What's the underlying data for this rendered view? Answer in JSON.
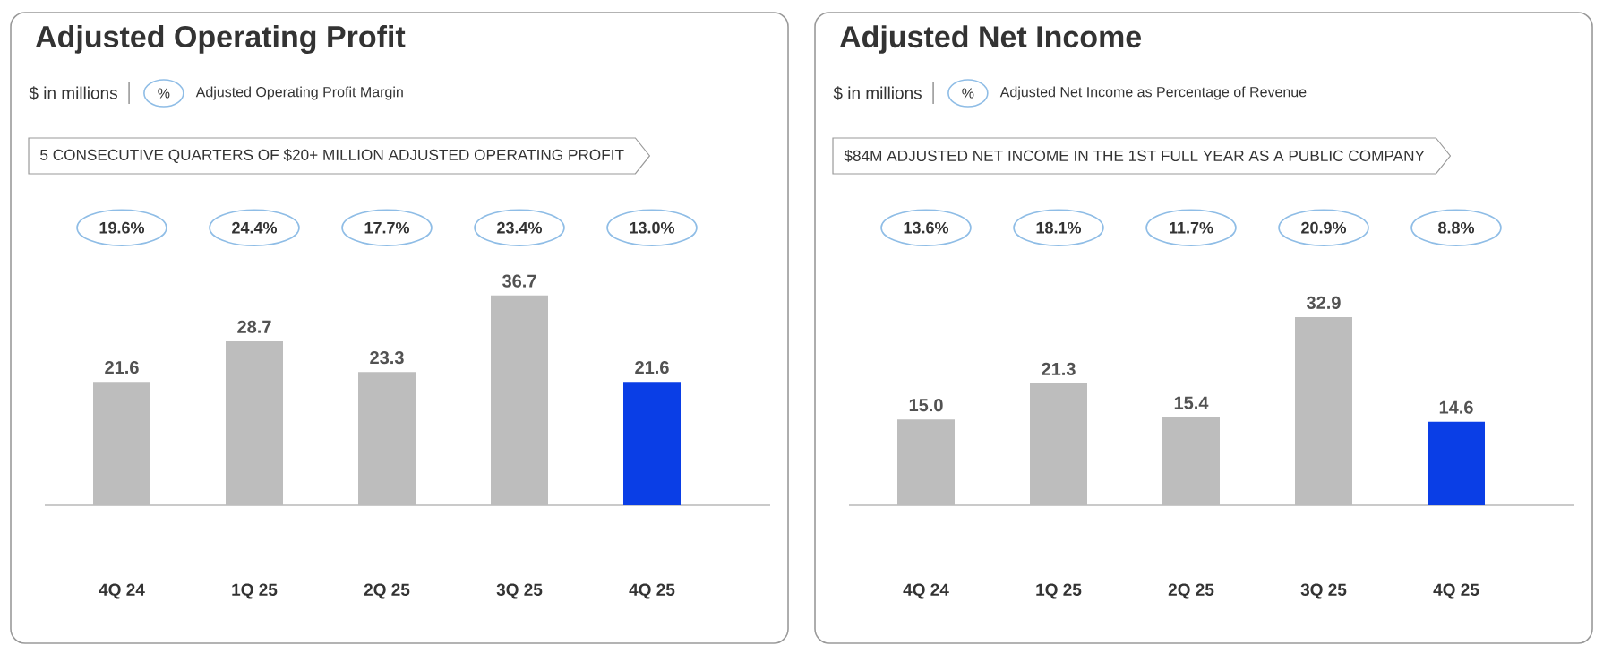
{
  "chart_data": [
    {
      "type": "bar",
      "title": "Adjusted Operating Profit",
      "subtitle": "$ in millions",
      "categories": [
        "4Q 24",
        "1Q 25",
        "2Q 25",
        "3Q 25",
        "4Q 25"
      ],
      "values": [
        21.6,
        28.7,
        23.3,
        36.7,
        21.6
      ],
      "colors": [
        "#bdbdbd",
        "#bdbdbd",
        "#bdbdbd",
        "#bdbdbd",
        "#0a3ee6"
      ],
      "data_labels": true,
      "annotations": [
        "%",
        "Adjusted Operating Profit Margin",
        "5 CONSECUTIVE QUARTERS OF $20+ MILLION ADJUSTED OPERATING PROFIT",
        "19.6%",
        "24.4%",
        "17.7%",
        "23.4%",
        "13.0%"
      ]
    },
    {
      "type": "bar",
      "title": "Adjusted Net Income",
      "subtitle": "$ in millions",
      "categories": [
        "4Q 24",
        "1Q 25",
        "2Q 25",
        "3Q 25",
        "4Q 25"
      ],
      "values": [
        15.0,
        21.3,
        15.4,
        32.9,
        14.6
      ],
      "value_labels": [
        "15.0",
        "21.3",
        "15.4",
        "32.9",
        "14.6"
      ],
      "colors": [
        "#bdbdbd",
        "#bdbdbd",
        "#bdbdbd",
        "#bdbdbd",
        "#0a3ee6"
      ],
      "annotations": [
        "%",
        "Adjusted Net Income as Percentage of Revenue",
        "$84M ADJUSTED NET INCOME IN THE 1ST FULL YEAR AS A PUBLIC COMPANY",
        "13.6%",
        "18.1%",
        "11.7%",
        "20.9%",
        "8.8%"
      ]
    }
  ]
}
